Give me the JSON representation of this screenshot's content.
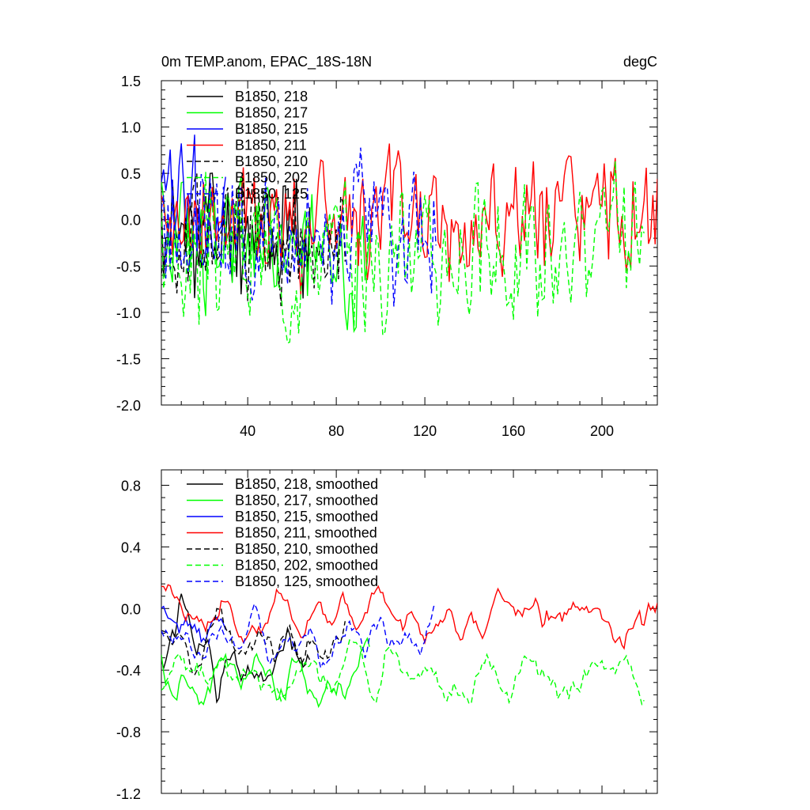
{
  "chart_data": [
    {
      "type": "line",
      "title_left": "0m TEMP.anom, EPAC_18S-18N",
      "title_right": "degC",
      "xlabel": "",
      "ylabel": "",
      "xlim": [
        1,
        225
      ],
      "ylim": [
        -2.0,
        1.5
      ],
      "x_ticks": [
        40,
        80,
        120,
        160,
        200
      ],
      "x_tick_labels": [
        "40",
        "80",
        "120",
        "160",
        "200"
      ],
      "y_ticks": [
        -2.0,
        -1.5,
        -1.0,
        -0.5,
        0.0,
        0.5,
        1.0,
        1.5
      ],
      "y_tick_labels": [
        "-2.0",
        "-1.5",
        "-1.0",
        "-0.5",
        "0.0",
        "0.5",
        "1.0",
        "1.5"
      ],
      "legend_position": "top-left",
      "series": [
        {
          "name": "B1850, 218",
          "color": "#000000",
          "dash": "solid",
          "length": 68,
          "mean": -0.15,
          "amp": 0.55,
          "seed": 11
        },
        {
          "name": "B1850, 217",
          "color": "#00ff00",
          "dash": "solid",
          "length": 95,
          "mean": -0.25,
          "amp": 0.55,
          "seed": 23
        },
        {
          "name": "B1850, 215",
          "color": "#0000ff",
          "dash": "solid",
          "length": 30,
          "mean": -0.05,
          "amp": 0.6,
          "seed": 37
        },
        {
          "name": "B1850, 211",
          "color": "#ff0000",
          "dash": "solid",
          "length": 225,
          "mean": -0.05,
          "amp": 0.5,
          "seed": 41
        },
        {
          "name": "B1850, 210",
          "color": "#000000",
          "dash": "dashed",
          "length": 84,
          "mean": -0.2,
          "amp": 0.5,
          "seed": 53
        },
        {
          "name": "B1850, 202",
          "color": "#00ff00",
          "dash": "dashed",
          "length": 219,
          "mean": -0.35,
          "amp": 0.55,
          "seed": 67
        },
        {
          "name": "B1850, 125",
          "color": "#0000ff",
          "dash": "dashed",
          "length": 125,
          "mean": -0.1,
          "amp": 0.55,
          "seed": 79
        }
      ]
    },
    {
      "type": "line",
      "xlabel": "",
      "ylabel": "",
      "xlim": [
        1,
        225
      ],
      "ylim": [
        -1.2,
        0.9
      ],
      "x_ticks": [
        40,
        80,
        120,
        160,
        200
      ],
      "x_tick_labels": [],
      "y_ticks": [
        -1.2,
        -0.8,
        -0.4,
        0.0,
        0.4,
        0.8
      ],
      "y_tick_labels": [
        "-1.2",
        "-0.8",
        "-0.4",
        "0.0",
        "0.4",
        "0.8"
      ],
      "legend_position": "top-left",
      "series": [
        {
          "name": "B1850, 218, smoothed",
          "color": "#000000",
          "dash": "solid",
          "length": 68,
          "mean": -0.3,
          "amp": 0.45,
          "seed": 12
        },
        {
          "name": "B1850, 217, smoothed",
          "color": "#00ff00",
          "dash": "solid",
          "length": 95,
          "mean": -0.45,
          "amp": 0.35,
          "seed": 24
        },
        {
          "name": "B1850, 215, smoothed",
          "color": "#0000ff",
          "dash": "solid",
          "length": 30,
          "mean": -0.15,
          "amp": 0.3,
          "seed": 38
        },
        {
          "name": "B1850, 211, smoothed",
          "color": "#ff0000",
          "dash": "solid",
          "length": 225,
          "mean": -0.05,
          "amp": 0.3,
          "seed": 42
        },
        {
          "name": "B1850, 210, smoothed",
          "color": "#000000",
          "dash": "dashed",
          "length": 84,
          "mean": -0.25,
          "amp": 0.3,
          "seed": 54
        },
        {
          "name": "B1850, 202, smoothed",
          "color": "#00ff00",
          "dash": "dashed",
          "length": 219,
          "mean": -0.45,
          "amp": 0.3,
          "seed": 68
        },
        {
          "name": "B1850, 125, smoothed",
          "color": "#0000ff",
          "dash": "dashed",
          "length": 125,
          "mean": -0.2,
          "amp": 0.3,
          "seed": 80
        }
      ]
    }
  ]
}
